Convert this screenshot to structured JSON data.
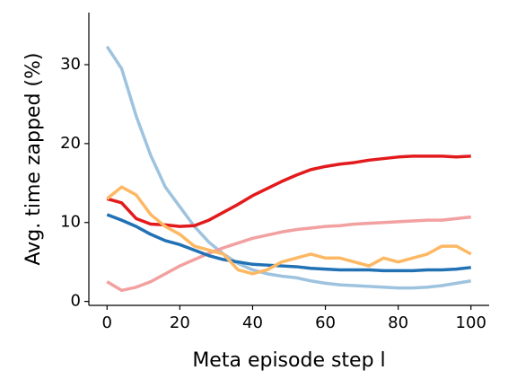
{
  "chart_data": {
    "type": "line",
    "ylabel": "Avg. time zapped (%)",
    "xlabel": "Meta episode step l",
    "x": [
      0,
      4,
      8,
      12,
      16,
      20,
      24,
      28,
      32,
      36,
      40,
      44,
      48,
      52,
      56,
      60,
      64,
      68,
      72,
      76,
      80,
      84,
      88,
      92,
      96,
      100
    ],
    "series": [
      {
        "color": "#9ec3df",
        "values": [
          32.3,
          29.5,
          23.5,
          18.5,
          14.5,
          12,
          9.5,
          7.5,
          6,
          4.8,
          4,
          3.5,
          3.2,
          3,
          2.6,
          2.3,
          2.1,
          2,
          1.9,
          1.8,
          1.7,
          1.7,
          1.8,
          2,
          2.3,
          2.6
        ]
      },
      {
        "color": "#f2a0a0",
        "values": [
          2.5,
          1.4,
          1.8,
          2.5,
          3.5,
          4.5,
          5.3,
          6.1,
          6.8,
          7.4,
          8,
          8.4,
          8.8,
          9.1,
          9.3,
          9.5,
          9.6,
          9.8,
          9.9,
          10,
          10.1,
          10.2,
          10.3,
          10.3,
          10.5,
          10.7
        ]
      },
      {
        "color": "#2171b5",
        "values": [
          11,
          10.3,
          9.5,
          8.5,
          7.7,
          7.2,
          6.5,
          5.8,
          5.3,
          5,
          4.7,
          4.6,
          4.5,
          4.4,
          4.2,
          4.1,
          4,
          4,
          4,
          3.9,
          3.9,
          3.9,
          4,
          4,
          4.1,
          4.3
        ]
      },
      {
        "color": "#e31a1c",
        "values": [
          13,
          12.5,
          10.5,
          9.8,
          9.7,
          9.5,
          9.6,
          10.3,
          11.3,
          12.3,
          13.4,
          14.3,
          15.2,
          16,
          16.7,
          17.1,
          17.4,
          17.6,
          17.9,
          18.1,
          18.3,
          18.4,
          18.4,
          18.4,
          18.3,
          18.4
        ]
      },
      {
        "color": "#fdb863",
        "values": [
          13,
          14.5,
          13.5,
          11,
          9.5,
          8.5,
          7,
          6.5,
          6,
          4,
          3.5,
          4,
          5,
          5.5,
          6,
          5.5,
          5.5,
          5,
          4.5,
          5.5,
          5,
          5.5,
          6,
          7,
          7,
          6
        ]
      }
    ],
    "xlim": [
      -5,
      105
    ],
    "ylim": [
      -0.5,
      36.6
    ],
    "xticks": [
      0,
      20,
      40,
      60,
      80,
      100
    ],
    "yticks": [
      0,
      10,
      20,
      30
    ]
  }
}
